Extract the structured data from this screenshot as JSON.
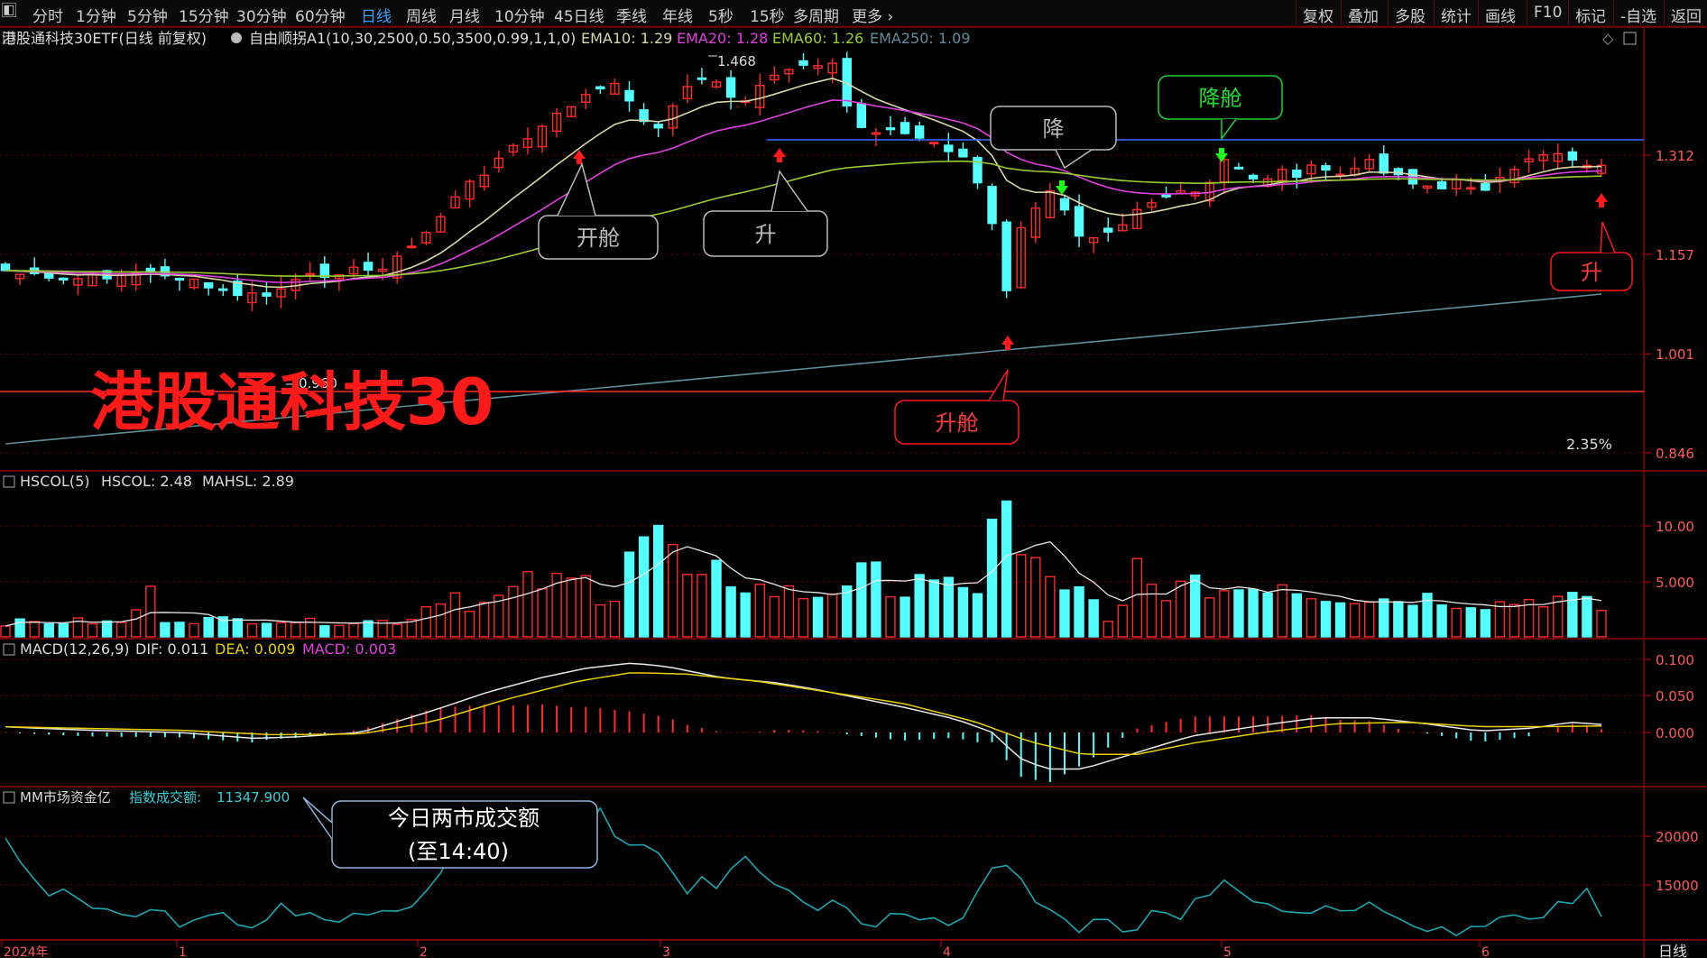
{
  "toolbar": {
    "left_items": [
      {
        "label": "分时",
        "active": false
      },
      {
        "label": "1分钟",
        "active": false
      },
      {
        "label": "5分钟",
        "active": false
      },
      {
        "label": "15分钟",
        "active": false
      },
      {
        "label": "30分钟",
        "active": false
      },
      {
        "label": "60分钟",
        "active": false
      },
      {
        "label": "日线",
        "active": true
      },
      {
        "label": "周线",
        "active": false
      },
      {
        "label": "月线",
        "active": false
      },
      {
        "label": "10分钟",
        "active": false
      },
      {
        "label": "45日线",
        "active": false
      },
      {
        "label": "季线",
        "active": false
      },
      {
        "label": "年线",
        "active": false
      },
      {
        "label": "5秒",
        "active": false
      },
      {
        "label": "15秒",
        "active": false
      },
      {
        "label": "多周期",
        "active": false
      },
      {
        "label": "更多",
        "active": false
      }
    ],
    "right_items": [
      "复权",
      "叠加",
      "多股",
      "统计",
      "画线",
      "F10",
      "标记",
      "-自选",
      "返回"
    ]
  },
  "price_panel": {
    "title": "港股通科技30ETF(日线 前复权)",
    "indicator": "自由顺拐A1(10,30,2500,0.50,3500,0.99,1,1,0)",
    "ema": [
      {
        "label": "EMA10: 1.29",
        "color": "#d8d8a8"
      },
      {
        "label": "EMA20: 1.28",
        "color": "#e040e0"
      },
      {
        "label": "EMA60: 1.26",
        "color": "#9acd32"
      },
      {
        "label": "EMA250: 1.09",
        "color": "#5f8f99"
      }
    ],
    "y_ticks": [
      "1.312",
      "1.157",
      "1.001",
      "0.846"
    ],
    "high_label": "1.468",
    "low_label": "0.960",
    "pct_label": "2.35%",
    "watermark": "港股通科技30"
  },
  "annotations": {
    "kaicang": "开舱",
    "sheng1": "升",
    "jiang": "降",
    "jiangcang": "降舱",
    "shengcang": "升舱",
    "sheng2": "升",
    "volume_note_line1": "今日两市成交额",
    "volume_note_line2": "(至14:40)"
  },
  "volume_panel": {
    "title": "HSCOL(5)",
    "hscol": "HSCOL: 2.48",
    "mahsl": "MAHSL: 2.89",
    "y_ticks": [
      "10.00",
      "5.000"
    ]
  },
  "macd_panel": {
    "title": "MACD(12,26,9)",
    "dif": "DIF: 0.011",
    "dea": "DEA: 0.009",
    "macd": "MACD: 0.003",
    "y_ticks": [
      "0.100",
      "0.050",
      "0.000"
    ]
  },
  "fund_panel": {
    "title": "MM市场资金亿",
    "label": "指数成交额:",
    "value": "11347.900",
    "y_ticks": [
      "20000",
      "15000"
    ]
  },
  "x_axis": {
    "labels": [
      "2024年",
      "1",
      "2",
      "3",
      "4",
      "5",
      "6"
    ],
    "period": "日线"
  },
  "colors": {
    "up": "#ff2a2a",
    "down": "#54ffff",
    "ema10": "#d8d8a8",
    "ema20": "#e040e0",
    "ema60": "#9acd32",
    "ema250": "#5f8f99",
    "grid": "#7a0000",
    "hline": "#3b6cff",
    "fund": "#1aa7b0"
  },
  "chart_data": {
    "type": "candlestick",
    "n_days": 111,
    "marked_levels": {
      "high": 1.468,
      "low": 0.96
    },
    "price_ylim": [
      0.846,
      1.468
    ],
    "volume_ylim": [
      0,
      13
    ],
    "macd_ylim": [
      -0.09,
      0.12
    ],
    "fund_ylim": [
      10000,
      22500
    ]
  }
}
